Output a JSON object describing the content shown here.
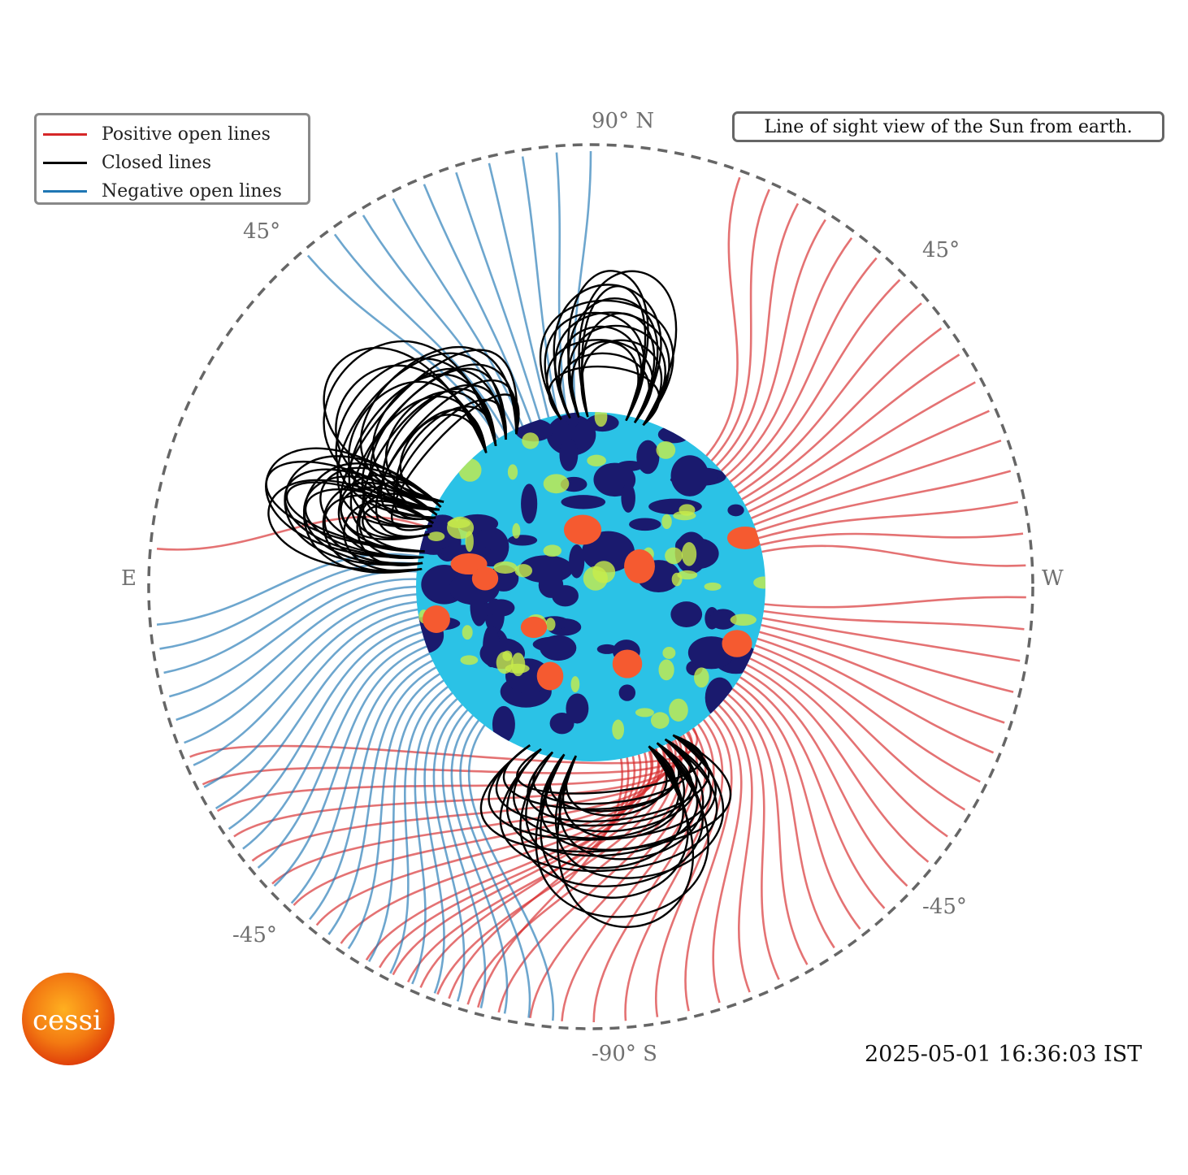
{
  "legend": {
    "items": [
      {
        "label": "Positive open lines",
        "color": "#d62728"
      },
      {
        "label": "Closed lines",
        "color": "#000000"
      },
      {
        "label": "Negative open lines",
        "color": "#1f77b4"
      }
    ]
  },
  "caption": "Line of sight view of the Sun from earth.",
  "axis_labels": {
    "north": "90° N",
    "south": "-90° S",
    "east": "E",
    "west": "W",
    "ne_lat": "45°",
    "nw_lat": "45°",
    "se_lat": "-45°",
    "sw_lat": "-45°"
  },
  "timestamp": "2025-05-01 16:36:03 IST",
  "logo": {
    "text": "cessi",
    "icon": "sun-logo-icon"
  },
  "colors": {
    "positive": "#d62728",
    "closed": "#000000",
    "negative": "#1f77b4",
    "boundary": "#666666"
  }
}
